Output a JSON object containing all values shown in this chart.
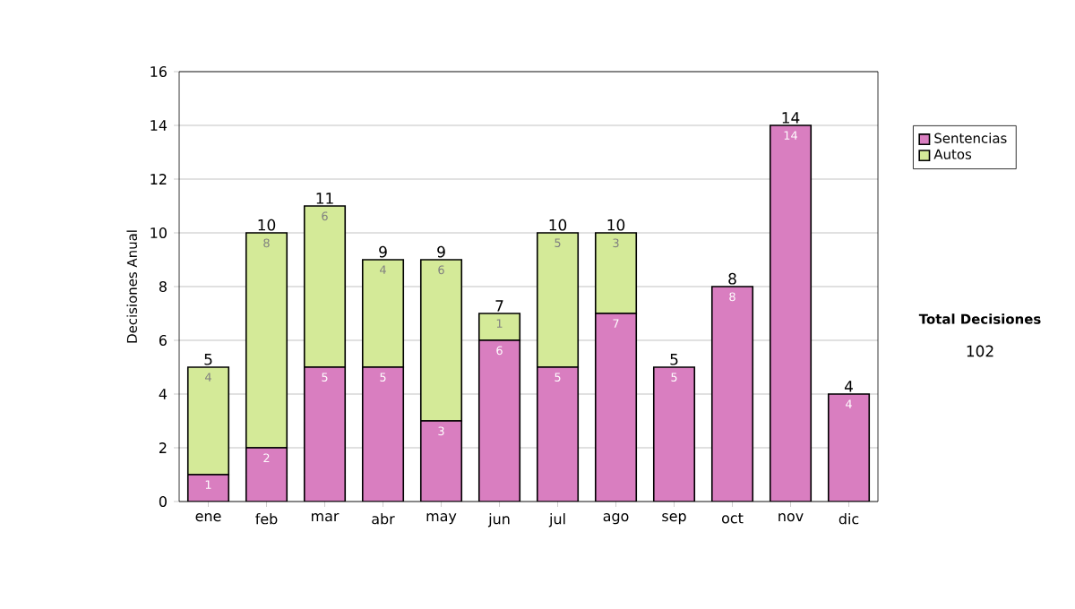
{
  "chart_data": {
    "type": "bar",
    "stacked": true,
    "ylabel": "Decisiones Anual",
    "categories": [
      "ene",
      "feb",
      "mar",
      "abr",
      "may",
      "jun",
      "jul",
      "ago",
      "sep",
      "oct",
      "nov",
      "dic"
    ],
    "series": [
      {
        "name": "Sentencias",
        "color": "#d97ec0",
        "values": [
          1,
          2,
          5,
          5,
          3,
          6,
          5,
          7,
          5,
          8,
          14,
          4
        ]
      },
      {
        "name": "Autos",
        "color": "#d4ea98",
        "values": [
          4,
          8,
          6,
          4,
          6,
          1,
          5,
          3,
          null,
          null,
          null,
          null
        ]
      }
    ],
    "totals": [
      "5",
      "10",
      "11",
      "9",
      "9",
      "7",
      "10",
      "10",
      "5",
      "8",
      "14",
      "4"
    ],
    "ylim": [
      0,
      16
    ],
    "yticks": [
      0,
      2,
      4,
      6,
      8,
      10,
      12,
      14,
      16
    ],
    "grid": "y",
    "legend": "right",
    "data_labels": true,
    "annotations": [
      "Total Decisiones",
      "102"
    ]
  }
}
